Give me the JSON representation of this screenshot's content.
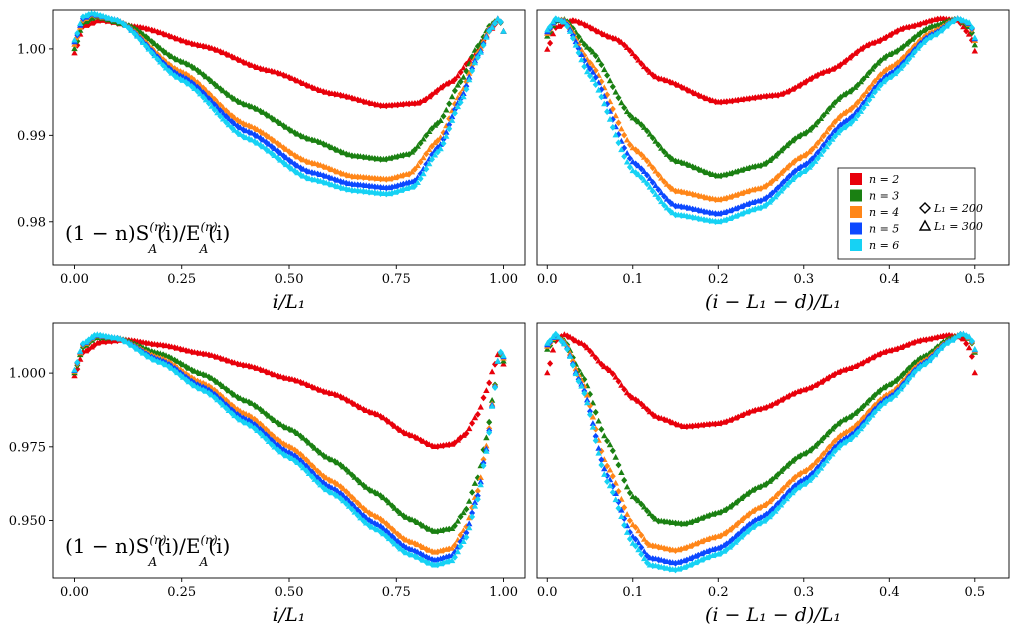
{
  "colors": {
    "n2": "#e8000b",
    "n3": "#1a8012",
    "n4": "#ff8619",
    "n5": "#0c48ff",
    "n6": "#16d2f4"
  },
  "chart_data": [
    {
      "id": "top-left",
      "type": "scatter",
      "xlabel": "i/L₁",
      "ylabel": "",
      "annotation": "(1−n)S_A^{(n)}(i)/E_A^{(n)}(i)",
      "annotation_text": "(1 − n)S",
      "xlim": [
        -0.05,
        1.05
      ],
      "ylim": [
        0.975,
        1.0045
      ],
      "xticks": [
        0.0,
        0.25,
        0.5,
        0.75,
        1.0
      ],
      "xtick_labels": [
        "0.00",
        "0.25",
        "0.50",
        "0.75",
        "1.00"
      ],
      "yticks": [
        0.98,
        0.99,
        1.0
      ],
      "ytick_labels": [
        "0.98",
        "0.99",
        "1.00"
      ],
      "series": [
        {
          "name": "n = 2",
          "color_key": "n2",
          "x": [
            0.0,
            0.02,
            0.06,
            0.15,
            0.3,
            0.45,
            0.6,
            0.72,
            0.8,
            0.88,
            0.93,
            0.97,
            0.99,
            1.0
          ],
          "y": [
            0.9995,
            1.0026,
            1.0033,
            1.0025,
            1.0003,
            0.9975,
            0.9948,
            0.9934,
            0.9937,
            0.9962,
            0.9991,
            1.0022,
            1.0035,
            1.002
          ]
        },
        {
          "name": "n = 3",
          "color_key": "n3",
          "x": [
            0.0,
            0.02,
            0.05,
            0.12,
            0.25,
            0.4,
            0.55,
            0.65,
            0.72,
            0.78,
            0.85,
            0.9,
            0.94,
            0.97,
            0.99,
            1.0
          ],
          "y": [
            1.0,
            1.003,
            1.0037,
            1.0028,
            0.9985,
            0.9935,
            0.9895,
            0.9876,
            0.9872,
            0.9878,
            0.9915,
            0.9962,
            1.0003,
            1.0028,
            1.0035,
            1.002
          ]
        },
        {
          "name": "n = 4",
          "color_key": "n4",
          "x": [
            0.0,
            0.02,
            0.04,
            0.1,
            0.25,
            0.4,
            0.55,
            0.65,
            0.73,
            0.78,
            0.85,
            0.9,
            0.94,
            0.97,
            0.99,
            1.0
          ],
          "y": [
            1.0005,
            1.0033,
            1.0039,
            1.0033,
            0.9973,
            0.9912,
            0.9868,
            0.9852,
            0.9849,
            0.9855,
            0.9895,
            0.9948,
            0.9995,
            1.0025,
            1.0036,
            1.002
          ]
        },
        {
          "name": "n = 5",
          "color_key": "n5",
          "x": [
            0.0,
            0.02,
            0.04,
            0.1,
            0.25,
            0.4,
            0.55,
            0.65,
            0.73,
            0.79,
            0.85,
            0.9,
            0.94,
            0.97,
            0.99,
            1.0
          ],
          "y": [
            1.0008,
            1.0035,
            1.004,
            1.0033,
            0.9968,
            0.9905,
            0.9857,
            0.9843,
            0.9839,
            0.9846,
            0.9887,
            0.9942,
            0.9992,
            1.0024,
            1.0036,
            1.002
          ]
        },
        {
          "name": "n = 6",
          "color_key": "n6",
          "x": [
            0.0,
            0.02,
            0.04,
            0.1,
            0.25,
            0.4,
            0.55,
            0.65,
            0.73,
            0.79,
            0.85,
            0.9,
            0.94,
            0.97,
            0.99,
            1.0
          ],
          "y": [
            1.001,
            1.0037,
            1.0041,
            1.0033,
            0.9964,
            0.9897,
            0.9849,
            0.9836,
            0.9832,
            0.984,
            0.9882,
            0.9938,
            0.999,
            1.0023,
            1.0036,
            1.002
          ]
        }
      ]
    },
    {
      "id": "top-right",
      "type": "scatter",
      "xlabel": "(i − L₁ − d)/L₁",
      "ylabel": "",
      "xlim": [
        -0.012,
        0.54
      ],
      "ylim": [
        0.9755,
        1.0045
      ],
      "xticks": [
        0.0,
        0.1,
        0.2,
        0.3,
        0.4,
        0.5
      ],
      "xtick_labels": [
        "0.0",
        "0.1",
        "0.2",
        "0.3",
        "0.4",
        "0.5"
      ],
      "yticks": [],
      "ytick_labels": [],
      "legend": {
        "placement": "lower-right",
        "entries": [
          "n = 2",
          "n = 3",
          "n = 4",
          "n = 5",
          "n = 6"
        ],
        "marker_entries": [
          "L₁ = 200",
          "L₁ = 300"
        ]
      },
      "series": [
        {
          "name": "n = 2",
          "color_key": "n2",
          "x": [
            0.0,
            0.01,
            0.03,
            0.08,
            0.13,
            0.2,
            0.27,
            0.33,
            0.38,
            0.42,
            0.46,
            0.48,
            0.495,
            0.5
          ],
          "y": [
            1.0,
            1.0025,
            1.0033,
            1.0012,
            0.9967,
            0.994,
            0.9948,
            0.9976,
            1.0007,
            1.0025,
            1.0035,
            1.0033,
            1.0016,
            0.9998
          ]
        },
        {
          "name": "n = 3",
          "color_key": "n3",
          "x": [
            0.0,
            0.01,
            0.02,
            0.05,
            0.1,
            0.15,
            0.2,
            0.25,
            0.3,
            0.35,
            0.4,
            0.45,
            0.48,
            0.495,
            0.5
          ],
          "y": [
            1.0015,
            1.0032,
            1.0034,
            1.0,
            0.9922,
            0.9873,
            0.9856,
            0.9868,
            0.9904,
            0.995,
            0.9994,
            1.0026,
            1.0035,
            1.0025,
            1.0005
          ]
        },
        {
          "name": "n = 4",
          "color_key": "n4",
          "x": [
            0.0,
            0.01,
            0.02,
            0.05,
            0.1,
            0.15,
            0.2,
            0.25,
            0.3,
            0.35,
            0.4,
            0.45,
            0.48,
            0.495,
            0.5
          ],
          "y": [
            1.0018,
            1.0034,
            1.0033,
            0.9985,
            0.9888,
            0.9839,
            0.9829,
            0.9842,
            0.9879,
            0.9929,
            0.9979,
            1.002,
            1.0035,
            1.0028,
            1.001
          ]
        },
        {
          "name": "n = 5",
          "color_key": "n5",
          "x": [
            0.0,
            0.01,
            0.02,
            0.05,
            0.1,
            0.15,
            0.2,
            0.25,
            0.3,
            0.35,
            0.4,
            0.45,
            0.48,
            0.495,
            0.5
          ],
          "y": [
            1.002,
            1.0034,
            1.0032,
            0.9978,
            0.9872,
            0.9822,
            0.9813,
            0.9828,
            0.9868,
            0.9919,
            0.9972,
            1.0017,
            1.0035,
            1.0029,
            1.0012
          ]
        },
        {
          "name": "n = 6",
          "color_key": "n6",
          "x": [
            0.0,
            0.01,
            0.02,
            0.05,
            0.1,
            0.15,
            0.2,
            0.25,
            0.3,
            0.35,
            0.4,
            0.45,
            0.48,
            0.495,
            0.5
          ],
          "y": [
            1.0022,
            1.0035,
            1.0031,
            0.997,
            0.9862,
            0.9812,
            0.9804,
            0.982,
            0.9861,
            0.9913,
            0.9968,
            1.0015,
            1.0035,
            1.003,
            1.0013
          ]
        }
      ]
    },
    {
      "id": "bottom-left",
      "type": "scatter",
      "xlabel": "i/L₁",
      "ylabel": "",
      "annotation": "(1−n)S_A^{(n)}(i)/E_A^{(n)}(i)",
      "annotation_text": "(1 − n)S",
      "xlim": [
        -0.05,
        1.05
      ],
      "ylim": [
        0.9305,
        1.017
      ],
      "xticks": [
        0.0,
        0.25,
        0.5,
        0.75,
        1.0
      ],
      "xtick_labels": [
        "0.00",
        "0.25",
        "0.50",
        "0.75",
        "1.00"
      ],
      "yticks": [
        0.95,
        0.975,
        1.0
      ],
      "ytick_labels": [
        "0.950",
        "0.975",
        "1.000"
      ],
      "series": [
        {
          "name": "n = 2",
          "color_key": "n2",
          "x": [
            0.0,
            0.02,
            0.06,
            0.12,
            0.2,
            0.3,
            0.4,
            0.5,
            0.6,
            0.7,
            0.78,
            0.84,
            0.88,
            0.91,
            0.94,
            0.96,
            0.98,
            0.99,
            1.0
          ],
          "y": [
            0.999,
            1.007,
            1.0105,
            1.0112,
            1.0095,
            1.0065,
            1.0025,
            0.998,
            0.993,
            0.9862,
            0.979,
            0.975,
            0.9758,
            0.979,
            0.986,
            0.994,
            1.003,
            1.0075,
            1.003
          ]
        },
        {
          "name": "n = 3",
          "color_key": "n3",
          "x": [
            0.0,
            0.02,
            0.05,
            0.1,
            0.2,
            0.3,
            0.4,
            0.5,
            0.6,
            0.7,
            0.78,
            0.84,
            0.88,
            0.91,
            0.94,
            0.96,
            0.98,
            0.99,
            1.0
          ],
          "y": [
            1.0,
            1.0088,
            1.012,
            1.0118,
            1.0065,
            0.9995,
            0.9905,
            0.981,
            0.9705,
            0.9595,
            0.9505,
            0.9462,
            0.9472,
            0.953,
            0.9645,
            0.978,
            0.996,
            1.0072,
            1.004
          ]
        },
        {
          "name": "n = 4",
          "color_key": "n4",
          "x": [
            0.0,
            0.02,
            0.05,
            0.1,
            0.2,
            0.3,
            0.4,
            0.5,
            0.6,
            0.7,
            0.78,
            0.84,
            0.88,
            0.91,
            0.94,
            0.96,
            0.98,
            0.99,
            1.0
          ],
          "y": [
            1.0005,
            1.0095,
            1.0126,
            1.0118,
            1.005,
            0.9965,
            0.986,
            0.975,
            0.9633,
            0.9515,
            0.9428,
            0.9392,
            0.9405,
            0.947,
            0.96,
            0.9752,
            0.9955,
            1.0075,
            1.005
          ]
        },
        {
          "name": "n = 5",
          "color_key": "n5",
          "x": [
            0.0,
            0.02,
            0.05,
            0.1,
            0.2,
            0.3,
            0.4,
            0.5,
            0.6,
            0.7,
            0.78,
            0.84,
            0.88,
            0.91,
            0.94,
            0.96,
            0.98,
            0.99,
            1.0
          ],
          "y": [
            1.0008,
            1.0098,
            1.0128,
            1.0118,
            1.0043,
            0.9952,
            0.9843,
            0.973,
            0.961,
            0.949,
            0.9403,
            0.9365,
            0.938,
            0.9448,
            0.9584,
            0.9742,
            0.9953,
            1.0076,
            1.0055
          ]
        },
        {
          "name": "n = 6",
          "color_key": "n6",
          "x": [
            0.0,
            0.02,
            0.05,
            0.1,
            0.2,
            0.3,
            0.4,
            0.5,
            0.6,
            0.7,
            0.78,
            0.84,
            0.88,
            0.91,
            0.94,
            0.96,
            0.98,
            0.99,
            1.0
          ],
          "y": [
            1.001,
            1.01,
            1.013,
            1.0118,
            1.0036,
            0.9942,
            0.983,
            0.9714,
            0.9593,
            0.9472,
            0.9385,
            0.9348,
            0.9363,
            0.9433,
            0.9572,
            0.9734,
            0.9951,
            1.0077,
            1.0058
          ]
        }
      ]
    },
    {
      "id": "bottom-right",
      "type": "scatter",
      "xlabel": "(i − L₁ − d)/L₁",
      "ylabel": "",
      "xlim": [
        -0.012,
        0.54
      ],
      "ylim": [
        0.9305,
        1.017
      ],
      "xticks": [
        0.0,
        0.1,
        0.2,
        0.3,
        0.4,
        0.5
      ],
      "xtick_labels": [
        "0.0",
        "0.1",
        "0.2",
        "0.3",
        "0.4",
        "0.5"
      ],
      "yticks": [],
      "ytick_labels": [],
      "series": [
        {
          "name": "n = 2",
          "color_key": "n2",
          "x": [
            0.0,
            0.01,
            0.02,
            0.04,
            0.07,
            0.1,
            0.13,
            0.16,
            0.2,
            0.25,
            0.3,
            0.35,
            0.4,
            0.44,
            0.47,
            0.485,
            0.495,
            0.5
          ],
          "y": [
            1.0,
            1.011,
            1.013,
            1.01,
            1.0015,
            0.9915,
            0.9848,
            0.9818,
            0.9828,
            0.9878,
            0.9942,
            1.0012,
            1.0075,
            1.0112,
            1.0128,
            1.012,
            1.008,
            1.0
          ]
        },
        {
          "name": "n = 3",
          "color_key": "n3",
          "x": [
            0.0,
            0.01,
            0.02,
            0.04,
            0.07,
            0.1,
            0.13,
            0.16,
            0.2,
            0.25,
            0.3,
            0.35,
            0.4,
            0.44,
            0.47,
            0.485,
            0.495,
            0.5
          ],
          "y": [
            1.008,
            1.0125,
            1.011,
            0.9995,
            0.977,
            0.958,
            0.9498,
            0.9488,
            0.9525,
            0.9615,
            0.9725,
            0.9845,
            0.996,
            1.0055,
            1.0115,
            1.0132,
            1.0115,
            1.007
          ]
        },
        {
          "name": "n = 4",
          "color_key": "n4",
          "x": [
            0.0,
            0.01,
            0.02,
            0.04,
            0.07,
            0.1,
            0.12,
            0.15,
            0.2,
            0.25,
            0.3,
            0.35,
            0.4,
            0.44,
            0.47,
            0.485,
            0.495,
            0.5
          ],
          "y": [
            1.009,
            1.0128,
            1.0105,
            0.9975,
            0.9685,
            0.9485,
            0.9415,
            0.9398,
            0.9445,
            0.9545,
            0.9665,
            0.98,
            0.993,
            1.004,
            1.011,
            1.0133,
            1.0118,
            1.0075
          ]
        },
        {
          "name": "n = 5",
          "color_key": "n5",
          "x": [
            0.0,
            0.01,
            0.02,
            0.04,
            0.07,
            0.1,
            0.12,
            0.15,
            0.2,
            0.25,
            0.3,
            0.35,
            0.4,
            0.44,
            0.47,
            0.485,
            0.495,
            0.5
          ],
          "y": [
            1.0095,
            1.013,
            1.01,
            0.9962,
            0.9652,
            0.9445,
            0.9372,
            0.9355,
            0.9405,
            0.951,
            0.9638,
            0.978,
            0.9918,
            1.0033,
            1.0108,
            1.0133,
            1.012,
            1.0078
          ]
        },
        {
          "name": "n = 6",
          "color_key": "n6",
          "x": [
            0.0,
            0.01,
            0.02,
            0.04,
            0.07,
            0.1,
            0.12,
            0.15,
            0.2,
            0.25,
            0.3,
            0.35,
            0.4,
            0.44,
            0.47,
            0.485,
            0.495,
            0.5
          ],
          "y": [
            1.01,
            1.0132,
            1.0098,
            0.9955,
            0.9632,
            0.9422,
            0.9348,
            0.9332,
            0.9385,
            0.9492,
            0.9622,
            0.9768,
            0.991,
            1.0028,
            1.0106,
            1.0133,
            1.0121,
            1.008
          ]
        }
      ]
    }
  ]
}
